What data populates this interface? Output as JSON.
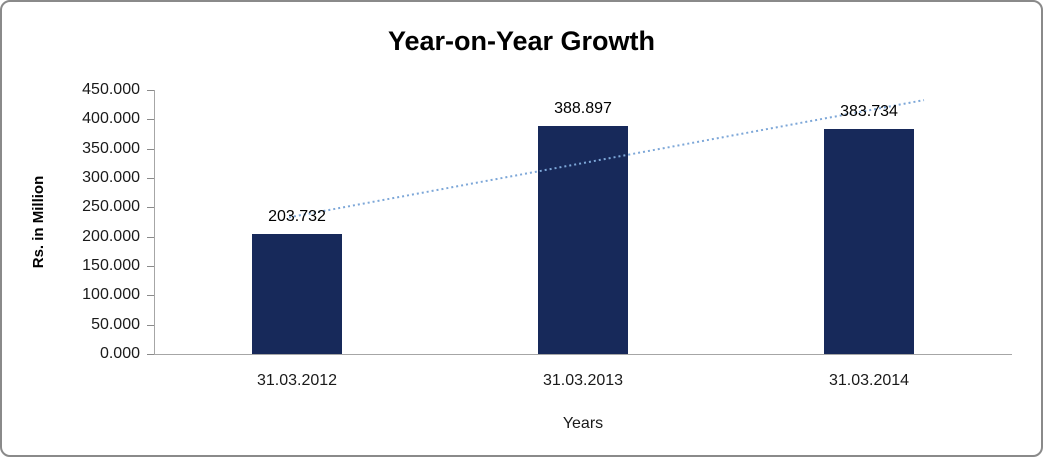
{
  "chart_data": {
    "type": "bar",
    "title": "Year-on-Year Growth",
    "xlabel": "Years",
    "ylabel": "Rs. in Million",
    "categories": [
      "31.03.2012",
      "31.03.2013",
      "31.03.2014"
    ],
    "values": [
      203.732,
      388.897,
      383.734
    ],
    "value_labels": [
      "203.732",
      "388.897",
      "383.734"
    ],
    "ylim": [
      0,
      450
    ],
    "ytick_step": 50,
    "yticks": [
      "450.000",
      "400.000",
      "350.000",
      "300.000",
      "250.000",
      "200.000",
      "150.000",
      "100.000",
      "50.000",
      "0.000"
    ],
    "bar_color": "#17295A",
    "trendline": {
      "type": "linear",
      "color": "#7DA7D8",
      "style": "dotted"
    },
    "grid": "off",
    "legend": "none"
  }
}
